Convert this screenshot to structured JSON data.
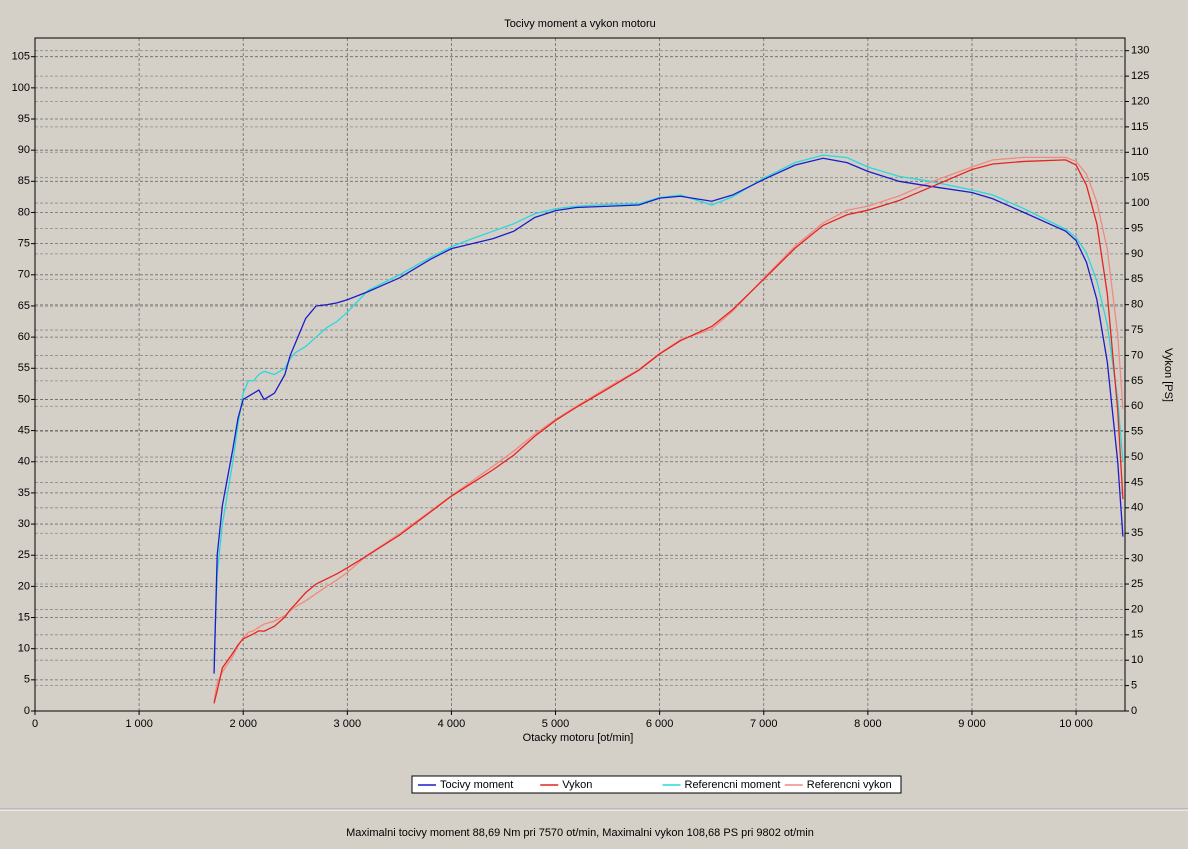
{
  "chart_data": {
    "type": "line",
    "title": "Tocivy moment a vykon motoru",
    "x_label": "Otacky motoru [ot/min]",
    "y2_label": "Vykon [PS]",
    "annotation": "Maximalni tocivy moment 88,69 Nm pri 7570 ot/min,  Maximalni vykon 108,68 PS pri 9802 ot/min",
    "grid": true,
    "legend": "bottom",
    "xlim": [
      0,
      10470
    ],
    "ylim": [
      0,
      108
    ],
    "y2lim": [
      0,
      132.5
    ],
    "xticks": [
      0,
      {
        "value": 1000,
        "label": "1 000"
      },
      {
        "value": 2000,
        "label": "2 000"
      },
      {
        "value": 3000,
        "label": "3 000"
      },
      {
        "value": 4000,
        "label": "4 000"
      },
      {
        "value": 5000,
        "label": "5 000"
      },
      {
        "value": 6000,
        "label": "6 000"
      },
      {
        "value": 7000,
        "label": "7 000"
      },
      {
        "value": 8000,
        "label": "8 000"
      },
      {
        "value": 9000,
        "label": "9 000"
      },
      {
        "value": 10000,
        "label": "10 000"
      }
    ],
    "yticks": [
      0,
      5,
      10,
      15,
      20,
      25,
      30,
      35,
      40,
      45,
      50,
      55,
      60,
      65,
      70,
      75,
      80,
      85,
      90,
      95,
      100,
      105
    ],
    "y2ticks": [
      0,
      5,
      10,
      15,
      20,
      25,
      30,
      35,
      40,
      45,
      50,
      55,
      60,
      65,
      70,
      75,
      80,
      85,
      90,
      95,
      100,
      105,
      110,
      115,
      120,
      125,
      130
    ],
    "x": [
      1720,
      1750,
      1800,
      1900,
      1950,
      2000,
      2050,
      2100,
      2150,
      2200,
      2300,
      2400,
      2450,
      2500,
      2600,
      2700,
      2800,
      2900,
      3000,
      3200,
      3500,
      3800,
      4000,
      4200,
      4400,
      4600,
      4800,
      5000,
      5200,
      5500,
      5800,
      6000,
      6200,
      6500,
      6700,
      7000,
      7300,
      7570,
      7800,
      8000,
      8300,
      8600,
      9000,
      9200,
      9500,
      9900,
      10000,
      10100,
      10200,
      10300,
      10400,
      10450
    ],
    "series": [
      {
        "name": "Referencni moment",
        "color": "#2ad8dc",
        "axis": "y",
        "values": [
          8,
          22,
          30,
          40,
          46,
          51,
          53,
          53,
          54,
          54.5,
          54,
          55,
          56.5,
          57.5,
          58.5,
          60,
          61.5,
          62.5,
          64,
          67.5,
          70,
          72.8,
          74.5,
          75.8,
          77,
          78.2,
          79.8,
          80.6,
          81,
          81.3,
          81.4,
          82.4,
          82.8,
          81.2,
          82.5,
          85.5,
          88,
          89.2,
          88.8,
          87.3,
          85.8,
          85,
          83.6,
          82.8,
          80.6,
          77.3,
          76,
          73.5,
          69,
          62,
          50,
          40
        ]
      },
      {
        "name": "Referencni vykon",
        "color": "#f08a80",
        "axis": "y2",
        "values": [
          2.0,
          5.5,
          7.7,
          10.8,
          12.8,
          14.5,
          15.5,
          15.8,
          16.5,
          17.1,
          17.7,
          18.8,
          19.7,
          20.5,
          21.7,
          23.1,
          24.5,
          25.8,
          27.3,
          30.8,
          34.9,
          39.4,
          42.4,
          45.3,
          48.2,
          51.2,
          54.5,
          57.4,
          60.0,
          63.7,
          67.2,
          70.4,
          73.1,
          75.2,
          78.7,
          85.2,
          91.5,
          96.1,
          98.6,
          99.4,
          101.4,
          104.1,
          107.1,
          108.5,
          109.0,
          109.0,
          108.2,
          105.7,
          100.2,
          90.9,
          74.1,
          59.5
        ]
      },
      {
        "name": "Tocivy moment",
        "color": "#1c1cc8",
        "axis": "y",
        "values": [
          6,
          25,
          33,
          42,
          47,
          50,
          50.5,
          51,
          51.5,
          50,
          51,
          54,
          57,
          59,
          63,
          65,
          65.2,
          65.5,
          66,
          67.3,
          69.5,
          72.5,
          74.2,
          75,
          75.8,
          77,
          79.2,
          80.3,
          80.8,
          81,
          81.2,
          82.3,
          82.6,
          81.8,
          82.8,
          85.3,
          87.6,
          88.7,
          88,
          86.6,
          85,
          84.2,
          83.2,
          82.2,
          80,
          77,
          75.5,
          72,
          66,
          56,
          40,
          28
        ]
      },
      {
        "name": "Vykon",
        "color": "#e62420",
        "axis": "y2",
        "values": [
          1.5,
          4,
          8.5,
          11.4,
          13.0,
          14.2,
          14.7,
          15.2,
          15.8,
          15.7,
          16.7,
          18.5,
          19.9,
          21.0,
          23.3,
          25.0,
          26.0,
          27.0,
          28.2,
          30.7,
          34.6,
          39.2,
          42.3,
          44.9,
          47.5,
          50.4,
          54.1,
          57.2,
          59.8,
          63.4,
          67.1,
          70.3,
          72.9,
          75.7,
          79.0,
          85.0,
          91.1,
          95.6,
          97.7,
          98.6,
          100.5,
          103.1,
          106.6,
          107.7,
          108.2,
          108.5,
          107.5,
          103.5,
          95.9,
          82.1,
          59.2,
          41.7
        ]
      }
    ],
    "legend_order": [
      2,
      3,
      0,
      1
    ]
  }
}
